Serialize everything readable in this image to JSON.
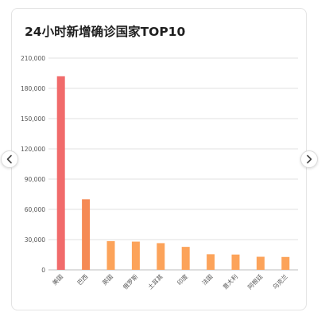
{
  "card": {
    "title": "24小时新增确诊国家TOP10"
  },
  "nav": {
    "prev_icon": "chevron-left-icon",
    "next_icon": "chevron-right-icon"
  },
  "colors": {
    "bar_top": "#f16b6b",
    "bar_top_range": "#f58a55",
    "bar_rest": "#fca35a",
    "axis_text": "#555555",
    "grid": "#e2e2e2"
  },
  "chart_data": {
    "type": "bar",
    "title": "24小时新增确诊国家TOP10",
    "xlabel": "",
    "ylabel": "",
    "categories": [
      "美国",
      "巴西",
      "英国",
      "俄罗斯",
      "土耳其",
      "印度",
      "法国",
      "意大利",
      "阿根廷",
      "乌克兰"
    ],
    "values": [
      192000,
      70000,
      28500,
      28000,
      26500,
      22800,
      15500,
      15200,
      13000,
      12800
    ],
    "ylim": [
      0,
      210000
    ],
    "yticks": [
      "0",
      "30,000",
      "60,000",
      "90,000",
      "120,000",
      "150,000",
      "180,000",
      "210,000"
    ],
    "grid": true,
    "legend": "none"
  }
}
